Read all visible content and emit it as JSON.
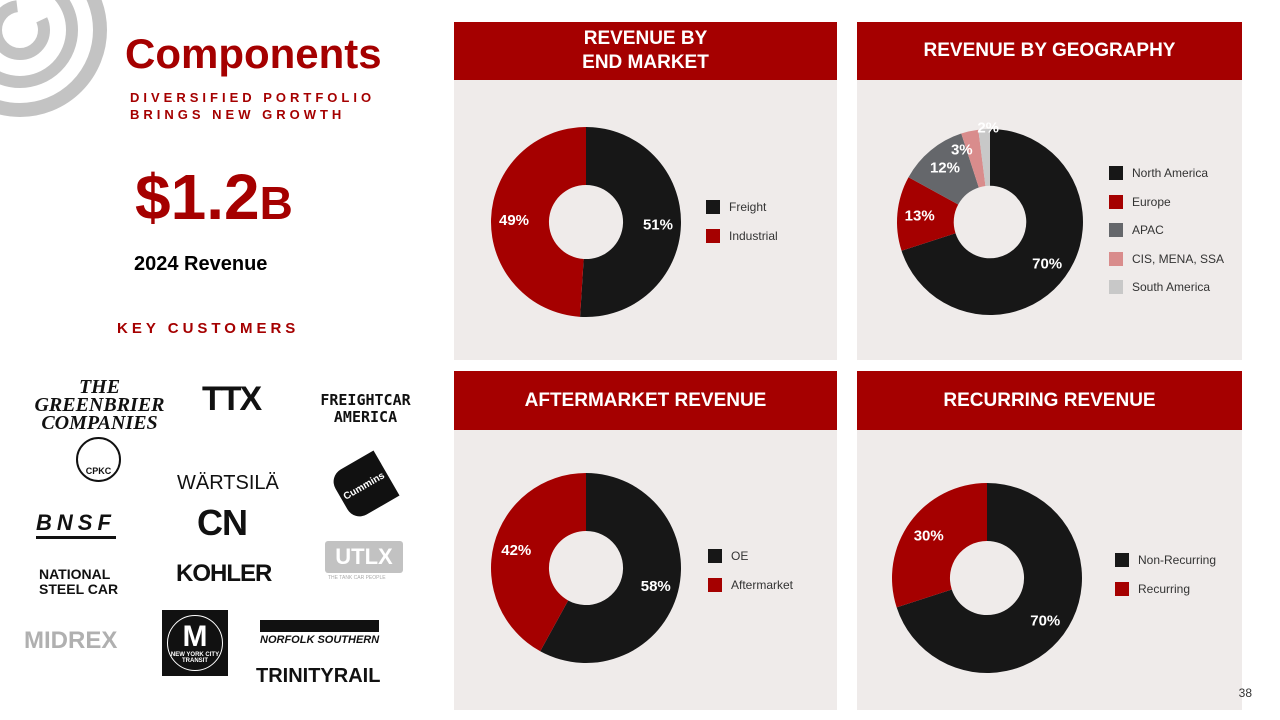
{
  "title": "Components",
  "subtitle": [
    "DIVERSIFIED PORTFOLIO",
    "BRINGS NEW GROWTH"
  ],
  "revenue": {
    "value": "$1.2",
    "unit": "B",
    "label": "2024 Revenue"
  },
  "key_customers_label": "KEY CUSTOMERS",
  "customers": [
    "THE GREENBRIER COMPANIES",
    "TTX",
    "FREIGHTCAR AMERICA",
    "CPKC",
    "WÄRTSILÄ",
    "Cummins",
    "BNSF",
    "CN",
    "UTLX",
    "NATIONAL STEEL CAR",
    "KOHLER",
    "THE TANK CAR PEOPLE",
    "MIDREX",
    "NEW YORK CITY TRANSIT",
    "NORFOLK SOUTHERN",
    "TRINITYRAIL"
  ],
  "page_number": "38",
  "colors": {
    "red": "#a50000",
    "dark": "#171717",
    "panel": "#efebea"
  },
  "chart_data": [
    {
      "type": "pie",
      "title": "REVENUE BY END MARKET",
      "categories": [
        "Freight",
        "Industrial"
      ],
      "values": [
        51,
        49
      ],
      "labels": [
        "51%",
        "49%"
      ],
      "colors": [
        "#171717",
        "#a50000"
      ],
      "legend": "right"
    },
    {
      "type": "pie",
      "title": "REVENUE BY GEOGRAPHY",
      "categories": [
        "North America",
        "Europe",
        "APAC",
        "CIS, MENA, SSA",
        "South America"
      ],
      "values": [
        70,
        13,
        12,
        3,
        2
      ],
      "labels": [
        "70%",
        "13%",
        "12%",
        "3%",
        "2%"
      ],
      "colors": [
        "#171717",
        "#a50000",
        "#65676b",
        "#d98c8c",
        "#c8c8c8"
      ],
      "legend": "right"
    },
    {
      "type": "pie",
      "title": "AFTERMARKET REVENUE",
      "categories": [
        "OE",
        "Aftermarket"
      ],
      "values": [
        58,
        42
      ],
      "labels": [
        "58%",
        "42%"
      ],
      "colors": [
        "#171717",
        "#a50000"
      ],
      "legend": "right"
    },
    {
      "type": "pie",
      "title": "RECURRING REVENUE",
      "categories": [
        "Non-Recurring",
        "Recurring"
      ],
      "values": [
        70,
        30
      ],
      "labels": [
        "70%",
        "30%"
      ],
      "colors": [
        "#171717",
        "#a50000"
      ],
      "legend": "right"
    }
  ]
}
